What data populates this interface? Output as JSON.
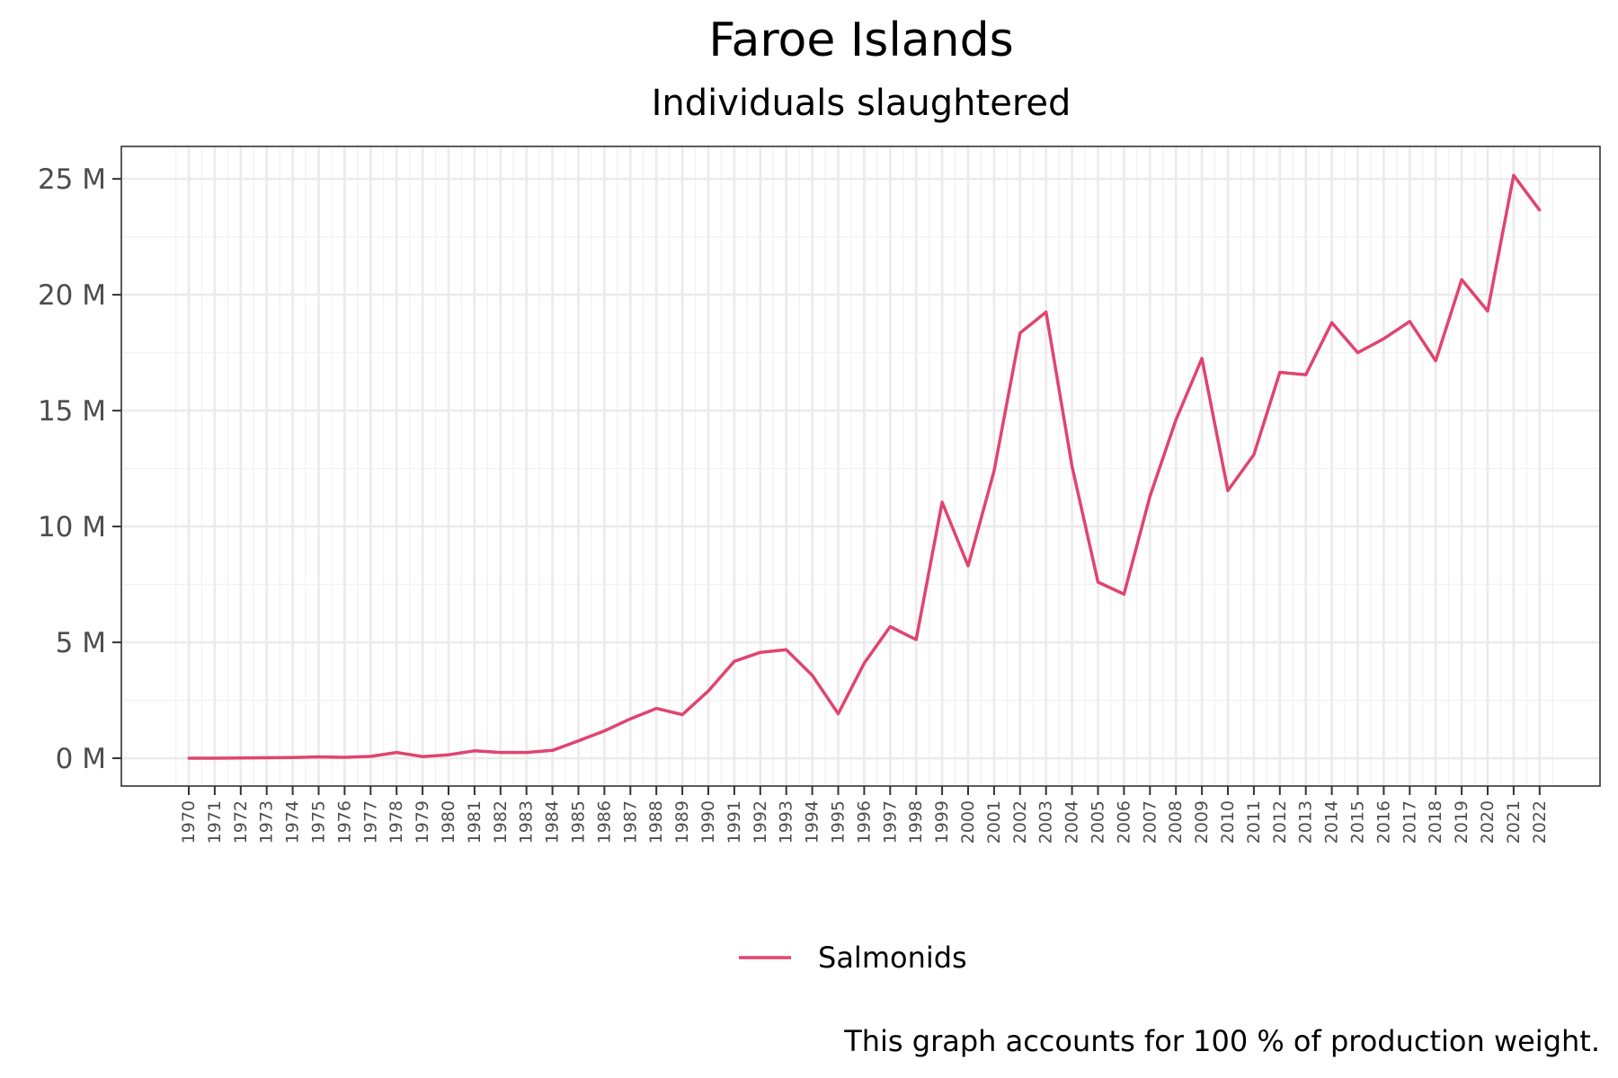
{
  "chart_data": {
    "type": "line",
    "title": "Faroe Islands",
    "subtitle": "Individuals slaughtered",
    "xlabel": "",
    "ylabel": "",
    "caption": "This graph accounts for 100 % of production weight.",
    "ylim": [
      -1.2,
      26.4
    ],
    "yticks": [
      0,
      5,
      10,
      15,
      20,
      25
    ],
    "ytick_labels": [
      "0 M",
      "5 M",
      "10 M",
      "15 M",
      "20 M",
      "25 M"
    ],
    "grid": true,
    "legend_position": "bottom",
    "x": [
      "1970",
      "1971",
      "1972",
      "1973",
      "1974",
      "1975",
      "1976",
      "1977",
      "1978",
      "1979",
      "1980",
      "1981",
      "1982",
      "1983",
      "1984",
      "1985",
      "1986",
      "1987",
      "1988",
      "1989",
      "1990",
      "1991",
      "1992",
      "1993",
      "1994",
      "1995",
      "1996",
      "1997",
      "1998",
      "1999",
      "2000",
      "2001",
      "2002",
      "2003",
      "2004",
      "2005",
      "2006",
      "2007",
      "2008",
      "2009",
      "2010",
      "2011",
      "2012",
      "2013",
      "2014",
      "2015",
      "2016",
      "2017",
      "2018",
      "2019",
      "2020",
      "2021",
      "2022"
    ],
    "series": [
      {
        "name": "Salmonids",
        "color": "#e0446f",
        "values": [
          0.0,
          0.0,
          0.01,
          0.02,
          0.03,
          0.06,
          0.04,
          0.08,
          0.25,
          0.07,
          0.15,
          0.32,
          0.25,
          0.25,
          0.34,
          0.75,
          1.18,
          1.7,
          2.15,
          1.88,
          2.9,
          4.18,
          4.57,
          4.68,
          3.58,
          1.92,
          4.1,
          5.68,
          5.12,
          11.05,
          8.3,
          12.4,
          18.35,
          19.25,
          12.6,
          7.6,
          7.08,
          11.3,
          14.6,
          17.25,
          11.55,
          13.1,
          16.65,
          16.55,
          18.8,
          17.5,
          18.1,
          18.85,
          17.15,
          20.65,
          19.3,
          25.15,
          23.65
        ]
      }
    ]
  }
}
